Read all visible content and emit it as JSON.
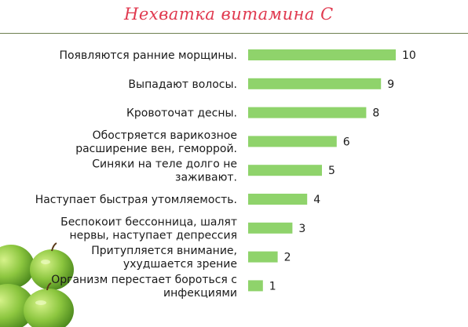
{
  "chart_data": {
    "type": "bar",
    "orientation": "horizontal",
    "title": "Нехватка витамина С",
    "xlabel": "",
    "ylabel": "",
    "categories": [
      "Появляются ранние морщины.",
      "Выпадают волосы.",
      "Кровоточат десны.",
      "Обостряется варикозное расширение вен, геморрой.",
      "Синяки на теле долго не заживают.",
      "Наступает быстрая утомляемость.",
      "Беспокоит бессонница, шалят нервы, наступает депрессия",
      "Притупляется внимание, ухудшается зрение",
      "Организм перестает бороться с инфекциями"
    ],
    "category_lines": [
      [
        "Появляются ранние морщины."
      ],
      [
        "Выпадают волосы."
      ],
      [
        "Кровоточат десны."
      ],
      [
        "Обостряется варикозное",
        "расширение вен, геморрой."
      ],
      [
        "Синяки на теле долго не",
        "заживают."
      ],
      [
        "Наступает быстрая утомляемость."
      ],
      [
        "Беспокоит бессонница, шалят",
        "нервы, наступает депрессия"
      ],
      [
        "Притупляется внимание,",
        "ухудшается зрение"
      ],
      [
        "Организм перестает бороться с",
        "инфекциями"
      ]
    ],
    "values": [
      10,
      9,
      8,
      6,
      5,
      4,
      3,
      2,
      1
    ],
    "xlim": [
      0,
      10
    ],
    "grid": false,
    "legend": "none",
    "bar_color": "#8fd36b",
    "title_color": "#e0394f"
  }
}
